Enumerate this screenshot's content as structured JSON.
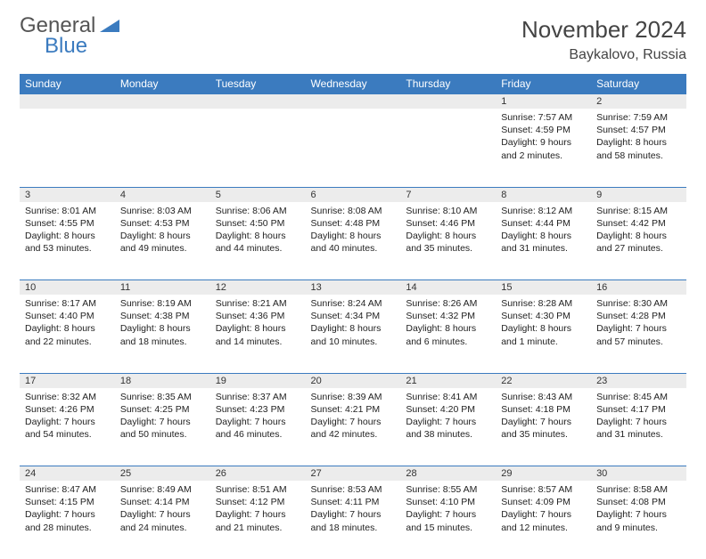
{
  "logo": {
    "general": "General",
    "blue": "Blue"
  },
  "title": "November 2024",
  "location": "Baykalovo, Russia",
  "colors": {
    "header_bg": "#3b7bbf",
    "header_text": "#ffffff",
    "daynum_bg": "#ececec",
    "border": "#3b7bbf",
    "text": "#222222",
    "logo_gray": "#555555",
    "logo_blue": "#3b7bbf"
  },
  "weekdays": [
    "Sunday",
    "Monday",
    "Tuesday",
    "Wednesday",
    "Thursday",
    "Friday",
    "Saturday"
  ],
  "weeks": [
    [
      {
        "n": "",
        "sr": "",
        "ss": "",
        "dl": ""
      },
      {
        "n": "",
        "sr": "",
        "ss": "",
        "dl": ""
      },
      {
        "n": "",
        "sr": "",
        "ss": "",
        "dl": ""
      },
      {
        "n": "",
        "sr": "",
        "ss": "",
        "dl": ""
      },
      {
        "n": "",
        "sr": "",
        "ss": "",
        "dl": ""
      },
      {
        "n": "1",
        "sr": "Sunrise: 7:57 AM",
        "ss": "Sunset: 4:59 PM",
        "dl": "Daylight: 9 hours and 2 minutes."
      },
      {
        "n": "2",
        "sr": "Sunrise: 7:59 AM",
        "ss": "Sunset: 4:57 PM",
        "dl": "Daylight: 8 hours and 58 minutes."
      }
    ],
    [
      {
        "n": "3",
        "sr": "Sunrise: 8:01 AM",
        "ss": "Sunset: 4:55 PM",
        "dl": "Daylight: 8 hours and 53 minutes."
      },
      {
        "n": "4",
        "sr": "Sunrise: 8:03 AM",
        "ss": "Sunset: 4:53 PM",
        "dl": "Daylight: 8 hours and 49 minutes."
      },
      {
        "n": "5",
        "sr": "Sunrise: 8:06 AM",
        "ss": "Sunset: 4:50 PM",
        "dl": "Daylight: 8 hours and 44 minutes."
      },
      {
        "n": "6",
        "sr": "Sunrise: 8:08 AM",
        "ss": "Sunset: 4:48 PM",
        "dl": "Daylight: 8 hours and 40 minutes."
      },
      {
        "n": "7",
        "sr": "Sunrise: 8:10 AM",
        "ss": "Sunset: 4:46 PM",
        "dl": "Daylight: 8 hours and 35 minutes."
      },
      {
        "n": "8",
        "sr": "Sunrise: 8:12 AM",
        "ss": "Sunset: 4:44 PM",
        "dl": "Daylight: 8 hours and 31 minutes."
      },
      {
        "n": "9",
        "sr": "Sunrise: 8:15 AM",
        "ss": "Sunset: 4:42 PM",
        "dl": "Daylight: 8 hours and 27 minutes."
      }
    ],
    [
      {
        "n": "10",
        "sr": "Sunrise: 8:17 AM",
        "ss": "Sunset: 4:40 PM",
        "dl": "Daylight: 8 hours and 22 minutes."
      },
      {
        "n": "11",
        "sr": "Sunrise: 8:19 AM",
        "ss": "Sunset: 4:38 PM",
        "dl": "Daylight: 8 hours and 18 minutes."
      },
      {
        "n": "12",
        "sr": "Sunrise: 8:21 AM",
        "ss": "Sunset: 4:36 PM",
        "dl": "Daylight: 8 hours and 14 minutes."
      },
      {
        "n": "13",
        "sr": "Sunrise: 8:24 AM",
        "ss": "Sunset: 4:34 PM",
        "dl": "Daylight: 8 hours and 10 minutes."
      },
      {
        "n": "14",
        "sr": "Sunrise: 8:26 AM",
        "ss": "Sunset: 4:32 PM",
        "dl": "Daylight: 8 hours and 6 minutes."
      },
      {
        "n": "15",
        "sr": "Sunrise: 8:28 AM",
        "ss": "Sunset: 4:30 PM",
        "dl": "Daylight: 8 hours and 1 minute."
      },
      {
        "n": "16",
        "sr": "Sunrise: 8:30 AM",
        "ss": "Sunset: 4:28 PM",
        "dl": "Daylight: 7 hours and 57 minutes."
      }
    ],
    [
      {
        "n": "17",
        "sr": "Sunrise: 8:32 AM",
        "ss": "Sunset: 4:26 PM",
        "dl": "Daylight: 7 hours and 54 minutes."
      },
      {
        "n": "18",
        "sr": "Sunrise: 8:35 AM",
        "ss": "Sunset: 4:25 PM",
        "dl": "Daylight: 7 hours and 50 minutes."
      },
      {
        "n": "19",
        "sr": "Sunrise: 8:37 AM",
        "ss": "Sunset: 4:23 PM",
        "dl": "Daylight: 7 hours and 46 minutes."
      },
      {
        "n": "20",
        "sr": "Sunrise: 8:39 AM",
        "ss": "Sunset: 4:21 PM",
        "dl": "Daylight: 7 hours and 42 minutes."
      },
      {
        "n": "21",
        "sr": "Sunrise: 8:41 AM",
        "ss": "Sunset: 4:20 PM",
        "dl": "Daylight: 7 hours and 38 minutes."
      },
      {
        "n": "22",
        "sr": "Sunrise: 8:43 AM",
        "ss": "Sunset: 4:18 PM",
        "dl": "Daylight: 7 hours and 35 minutes."
      },
      {
        "n": "23",
        "sr": "Sunrise: 8:45 AM",
        "ss": "Sunset: 4:17 PM",
        "dl": "Daylight: 7 hours and 31 minutes."
      }
    ],
    [
      {
        "n": "24",
        "sr": "Sunrise: 8:47 AM",
        "ss": "Sunset: 4:15 PM",
        "dl": "Daylight: 7 hours and 28 minutes."
      },
      {
        "n": "25",
        "sr": "Sunrise: 8:49 AM",
        "ss": "Sunset: 4:14 PM",
        "dl": "Daylight: 7 hours and 24 minutes."
      },
      {
        "n": "26",
        "sr": "Sunrise: 8:51 AM",
        "ss": "Sunset: 4:12 PM",
        "dl": "Daylight: 7 hours and 21 minutes."
      },
      {
        "n": "27",
        "sr": "Sunrise: 8:53 AM",
        "ss": "Sunset: 4:11 PM",
        "dl": "Daylight: 7 hours and 18 minutes."
      },
      {
        "n": "28",
        "sr": "Sunrise: 8:55 AM",
        "ss": "Sunset: 4:10 PM",
        "dl": "Daylight: 7 hours and 15 minutes."
      },
      {
        "n": "29",
        "sr": "Sunrise: 8:57 AM",
        "ss": "Sunset: 4:09 PM",
        "dl": "Daylight: 7 hours and 12 minutes."
      },
      {
        "n": "30",
        "sr": "Sunrise: 8:58 AM",
        "ss": "Sunset: 4:08 PM",
        "dl": "Daylight: 7 hours and 9 minutes."
      }
    ]
  ]
}
